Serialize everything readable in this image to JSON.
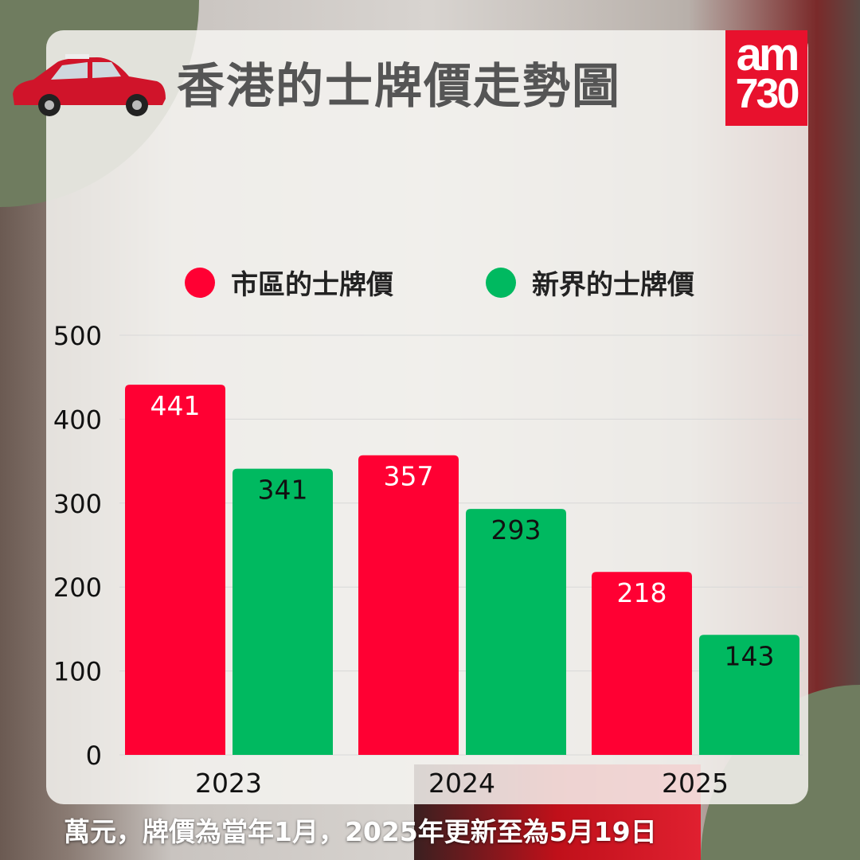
{
  "header": {
    "title": "香港的士牌價走勢圖",
    "logo_text": "am730"
  },
  "footer": {
    "note": "萬元，牌價為當年1月，2025年更新至為5月19日"
  },
  "colors": {
    "urban": "#ff0033",
    "nt": "#00b960"
  },
  "chart_data": {
    "type": "bar",
    "title": "香港的士牌價走勢圖",
    "categories": [
      "2023",
      "2024",
      "2025"
    ],
    "series": [
      {
        "name": "市區的士牌價",
        "values": [
          441,
          357,
          218
        ],
        "color": "#ff0033"
      },
      {
        "name": "新界的士牌價",
        "values": [
          341,
          293,
          143
        ],
        "color": "#00b960"
      }
    ],
    "yticks": [
      "0",
      "100",
      "200",
      "300",
      "400",
      "500"
    ],
    "ylim": [
      0,
      500
    ],
    "ylabel": "",
    "xlabel": "",
    "unit": "萬元",
    "grid": true,
    "legend": "top"
  }
}
